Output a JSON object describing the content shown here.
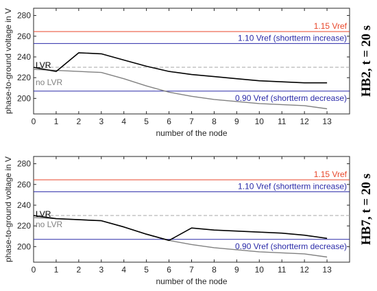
{
  "chart_data": [
    {
      "type": "line",
      "side_label": "HB2, t = 20 s",
      "xlabel": "number of the node",
      "ylabel": "phase-to-ground voltage in V",
      "xlim": [
        0,
        14
      ],
      "ylim": [
        185,
        287
      ],
      "x_ticks": [
        0,
        1,
        2,
        3,
        4,
        5,
        6,
        7,
        8,
        9,
        10,
        11,
        12,
        13
      ],
      "y_ticks": [
        200,
        220,
        240,
        260,
        280
      ],
      "x": [
        0,
        1,
        2,
        3,
        4,
        5,
        6,
        7,
        8,
        9,
        10,
        11,
        12,
        13
      ],
      "series": [
        {
          "name": "LVR",
          "color": "#000000",
          "values": [
            230,
            226,
            244,
            243,
            237,
            231,
            226,
            223,
            221,
            219,
            217,
            216,
            215,
            215
          ]
        },
        {
          "name": "no LVR",
          "color": "#808080",
          "values": [
            228,
            227,
            226,
            225,
            219,
            212,
            206,
            202,
            199,
            197,
            195,
            194,
            193,
            190
          ]
        }
      ],
      "reference_lines": [
        {
          "label": "1.15 Vref",
          "value": 264.5,
          "color": "#e8462a",
          "style": "solid"
        },
        {
          "label": "1.10 Vref (shortterm increase)",
          "value": 253,
          "color": "#2a2aa8",
          "style": "solid"
        },
        {
          "label": "",
          "value": 230,
          "color": "#a6a6a6",
          "style": "dashed"
        },
        {
          "label": "0.90 Vref (shortterm decrease)",
          "value": 207,
          "color": "#2a2aa8",
          "style": "solid"
        }
      ]
    },
    {
      "type": "line",
      "side_label": "HB7, t = 20 s",
      "xlabel": "number of the node",
      "ylabel": "phase-to-ground voltage in V",
      "xlim": [
        0,
        14
      ],
      "ylim": [
        185,
        287
      ],
      "x_ticks": [
        0,
        1,
        2,
        3,
        4,
        5,
        6,
        7,
        8,
        9,
        10,
        11,
        12,
        13
      ],
      "y_ticks": [
        200,
        220,
        240,
        260,
        280
      ],
      "x": [
        0,
        1,
        2,
        3,
        4,
        5,
        6,
        7,
        8,
        9,
        10,
        11,
        12,
        13
      ],
      "series": [
        {
          "name": "LVR",
          "color": "#000000",
          "values": [
            230,
            227,
            226,
            225,
            219,
            212,
            206,
            218,
            216,
            215,
            214,
            213,
            211,
            208
          ]
        },
        {
          "name": "no LVR",
          "color": "#808080",
          "values": [
            228,
            227,
            226,
            225,
            219,
            212,
            206,
            202,
            199,
            197,
            195,
            194,
            193,
            190
          ]
        }
      ],
      "reference_lines": [
        {
          "label": "1.15 Vref",
          "value": 264.5,
          "color": "#e8462a",
          "style": "solid"
        },
        {
          "label": "1.10 Vref (shortterm increase)",
          "value": 253,
          "color": "#2a2aa8",
          "style": "solid"
        },
        {
          "label": "",
          "value": 230,
          "color": "#a6a6a6",
          "style": "dashed"
        },
        {
          "label": "0.90 Vref (shortterm decrease)",
          "value": 207,
          "color": "#2a2aa8",
          "style": "solid"
        }
      ]
    }
  ]
}
